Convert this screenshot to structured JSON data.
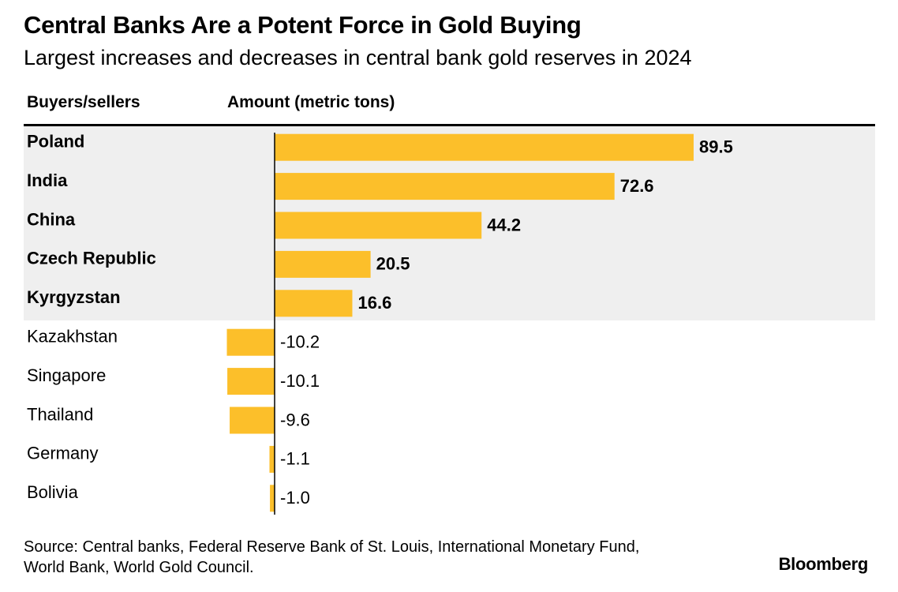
{
  "title": "Central Banks Are a Potent Force in Gold Buying",
  "subtitle": "Largest increases and decreases in central bank gold reserves in 2024",
  "column_headers": {
    "left": "Buyers/sellers",
    "right": "Amount (metric tons)"
  },
  "source": "Source: Central banks, Federal Reserve Bank of St. Louis, International Monetary Fund, World Bank, World Gold Council.",
  "brand": "Bloomberg",
  "colors": {
    "bar": "#fcbf2a",
    "buyer_band": "#efefef",
    "axis": "#000000"
  },
  "chart_data": {
    "type": "bar",
    "orientation": "horizontal",
    "categories": [
      "Poland",
      "India",
      "China",
      "Czech Republic",
      "Kyrgyzstan",
      "Kazakhstan",
      "Singapore",
      "Thailand",
      "Germany",
      "Bolivia"
    ],
    "values": [
      89.5,
      72.6,
      44.2,
      20.5,
      16.6,
      -10.2,
      -10.1,
      -9.6,
      -1.1,
      -1.0
    ],
    "value_labels": [
      "89.5",
      "72.6",
      "44.2",
      "20.5",
      "16.6",
      "-10.2",
      "-10.1",
      "-9.6",
      "-1.1",
      "-1.0"
    ],
    "groups": [
      "buyer",
      "buyer",
      "buyer",
      "buyer",
      "buyer",
      "seller",
      "seller",
      "seller",
      "seller",
      "seller"
    ],
    "title": "Central Banks Are a Potent Force in Gold Buying",
    "xlabel": "Amount (metric tons)",
    "ylabel": "Buyers/sellers",
    "xlim": [
      -10.2,
      89.5
    ]
  }
}
